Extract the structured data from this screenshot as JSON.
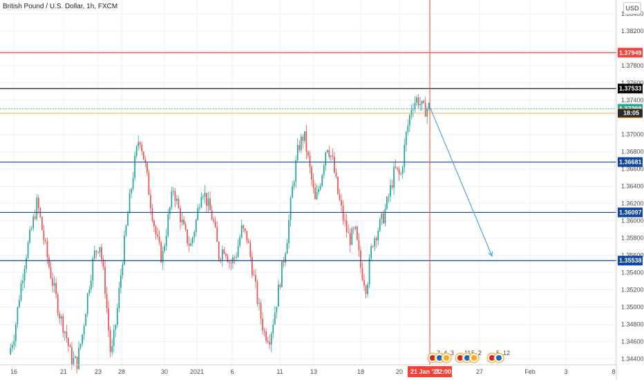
{
  "header": {
    "title": "British Pound / U.S. Dollar, 1h, FXCM"
  },
  "currency_button": "USD",
  "crosshair": {
    "date_label": "21 Jan '21",
    "time_label": "22:00"
  },
  "colors": {
    "up": "#26a69a",
    "down": "#ef5350",
    "red_level": "#f44336",
    "black_level": "#000000",
    "teal_level": "#26a69a",
    "orange_level": "#ff9800",
    "blue_level": "#0d47a1",
    "arrow": "#4fa3e0",
    "crosshair": "#f44336"
  },
  "events": [
    {
      "flag": "UK",
      "count": "7"
    },
    {
      "flag": "US",
      "count": "4"
    },
    {
      "flag": "EU",
      "count": "3"
    },
    {
      "flag": "UK",
      "count": "11"
    },
    {
      "flag": "US",
      "count": "5"
    },
    {
      "flag": "EU",
      "count": "2"
    },
    {
      "flag": "UK",
      "count": "5"
    },
    {
      "flag": "US",
      "count": "12"
    }
  ],
  "chart_data": {
    "type": "candlestick",
    "title": "British Pound / U.S. Dollar, 1h, FXCM",
    "x_tick_labels": [
      "16",
      "21",
      "23",
      "28",
      "30",
      "2021",
      "6",
      "11",
      "13",
      "18",
      "20",
      "27",
      "Feb",
      "3",
      "8"
    ],
    "y_tick_labels": [
      "1.38400",
      "1.38200",
      "1.37800",
      "1.37600",
      "1.37400",
      "1.37000",
      "1.36800",
      "1.36600",
      "1.36400",
      "1.36200",
      "1.36000",
      "1.35800",
      "1.35600",
      "1.35400",
      "1.35200",
      "1.35000",
      "1.34800",
      "1.34600",
      "1.34400"
    ],
    "y_tick_values": [
      1.384,
      1.382,
      1.378,
      1.376,
      1.374,
      1.37,
      1.368,
      1.366,
      1.364,
      1.362,
      1.36,
      1.358,
      1.356,
      1.354,
      1.352,
      1.35,
      1.348,
      1.346,
      1.344
    ],
    "ylim": [
      1.3433,
      1.3856
    ],
    "grid": true,
    "horizontal_levels": [
      {
        "value": 1.37949,
        "label": "1.37949",
        "kind": "resistance",
        "color": "#f44336"
      },
      {
        "value": 1.37533,
        "label": "1.37533",
        "kind": "resistance",
        "color": "#000000"
      },
      {
        "value": 1.37298,
        "label": "1.37298",
        "kind": "last-price",
        "color": "#26a69a"
      },
      {
        "value": 1.37247,
        "label": "1.37247",
        "kind": "average",
        "color": "#ff9800"
      },
      {
        "value": 1.36681,
        "label": "1.36681",
        "kind": "support",
        "color": "#0d47a1"
      },
      {
        "value": 1.36097,
        "label": "1.36097",
        "kind": "support",
        "color": "#0d47a1"
      },
      {
        "value": 1.35538,
        "label": "1.35538",
        "kind": "support",
        "color": "#0d47a1"
      }
    ],
    "countdown": "18:05",
    "price_path": [
      1.3445,
      1.347,
      1.352,
      1.356,
      1.359,
      1.3622,
      1.3585,
      1.355,
      1.352,
      1.349,
      1.347,
      1.344,
      1.3435,
      1.347,
      1.352,
      1.356,
      1.3575,
      1.352,
      1.344,
      1.349,
      1.3555,
      1.361,
      1.366,
      1.37,
      1.3665,
      1.362,
      1.358,
      1.3555,
      1.36,
      1.3638,
      1.361,
      1.3585,
      1.357,
      1.36,
      1.364,
      1.362,
      1.36,
      1.356,
      1.357,
      1.355,
      1.356,
      1.359,
      1.358,
      1.354,
      1.35,
      1.347,
      1.3465,
      1.35,
      1.354,
      1.358,
      1.364,
      1.3685,
      1.37,
      1.366,
      1.362,
      1.365,
      1.369,
      1.367,
      1.363,
      1.36,
      1.3578,
      1.3588,
      1.3545,
      1.3522,
      1.3575,
      1.359,
      1.3605,
      1.363,
      1.366,
      1.365,
      1.37,
      1.3735,
      1.3742,
      1.3728,
      1.3732
    ],
    "projection_arrow": {
      "from": {
        "date": "21 Jan '21 22:00",
        "price": 1.3732
      },
      "to": {
        "date": "27 Jan '21",
        "price": 1.3559
      }
    }
  }
}
